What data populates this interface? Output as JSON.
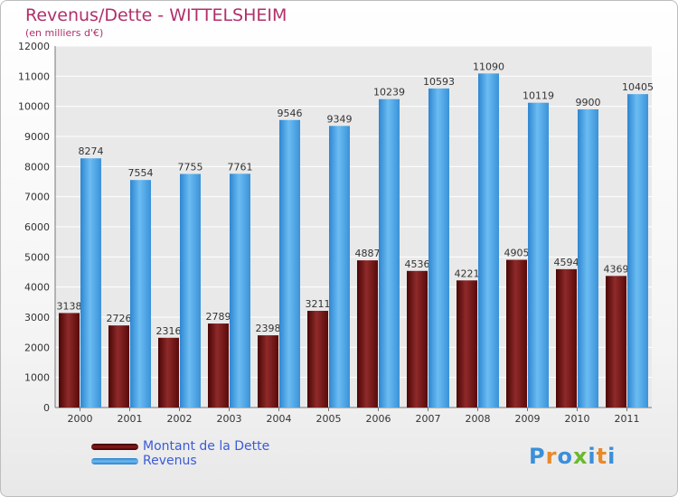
{
  "header": {
    "title": "Revenus/Dette - WITTELSHEIM",
    "subtitle": "(en milliers d'€)"
  },
  "legend": {
    "items": [
      {
        "label": "Montant de la Dette",
        "color": "#7a1a1a"
      },
      {
        "label": "Revenus",
        "color": "#4aa3e6"
      }
    ]
  },
  "brand": {
    "name": "Proxiti",
    "letters": [
      {
        "ch": "P",
        "color": "#3b8fd9"
      },
      {
        "ch": "r",
        "color": "#e8892a"
      },
      {
        "ch": "o",
        "color": "#3b8fd9"
      },
      {
        "ch": "x",
        "color": "#6ab82e"
      },
      {
        "ch": "i",
        "color": "#3b8fd9"
      },
      {
        "ch": "t",
        "color": "#e8892a"
      },
      {
        "ch": "i",
        "color": "#3b8fd9"
      }
    ]
  },
  "chart_data": {
    "type": "bar",
    "categories": [
      "2000",
      "2001",
      "2002",
      "2003",
      "2004",
      "2005",
      "2006",
      "2007",
      "2008",
      "2009",
      "2010",
      "2011"
    ],
    "series": [
      {
        "name": "Montant de la Dette",
        "color": "#7a1a1a",
        "values": [
          3138,
          2726,
          2316,
          2789,
          2398,
          3211,
          4887,
          4536,
          4221,
          4905,
          4594,
          4369
        ],
        "labels": [
          "3138",
          "2726",
          "2316",
          "2789",
          "2398",
          "3211",
          "4887",
          "4536",
          "4221",
          "4905",
          "4594",
          "4369"
        ]
      },
      {
        "name": "Revenus",
        "color": "#4aa3e6",
        "values": [
          8274,
          7554,
          7755,
          7761,
          9546,
          9349,
          10239,
          10593,
          11090,
          10119,
          9900,
          10405
        ],
        "labels": [
          "8274",
          "7554",
          "7755",
          "7761",
          "9546",
          "9349",
          "10239",
          "10593",
          "11090",
          "10119",
          "9900",
          "10405"
        ]
      }
    ],
    "ylim": [
      0,
      12000
    ],
    "yticks": [
      0,
      1000,
      2000,
      3000,
      4000,
      5000,
      6000,
      7000,
      8000,
      9000,
      10000,
      11000,
      12000
    ],
    "grid": true,
    "title": "Revenus/Dette - WITTELSHEIM",
    "ylabel": "(en milliers d'€)",
    "xlabel": ""
  }
}
